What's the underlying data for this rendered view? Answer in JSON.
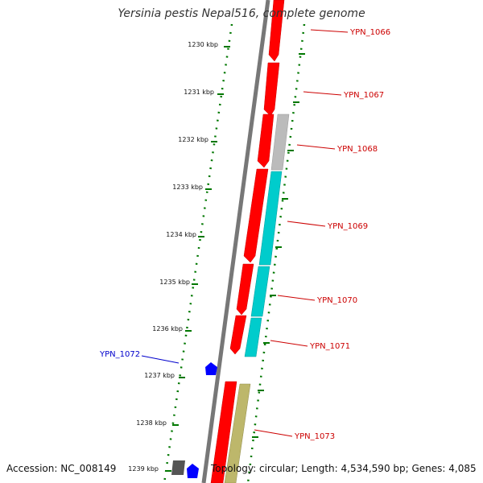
{
  "title": "Yersinia pestis Nepal516, complete genome",
  "footer": {
    "accession": "Accession: NC_008149",
    "topology": "Topology: circular; Length: 4,534,590 bp; Genes: 4,085"
  },
  "ticks": [
    {
      "label": "1230 kbp"
    },
    {
      "label": "1231 kbp"
    },
    {
      "label": "1232 kbp"
    },
    {
      "label": "1233 kbp"
    },
    {
      "label": "1234 kbp"
    },
    {
      "label": "1235 kbp"
    },
    {
      "label": "1236 kbp"
    },
    {
      "label": "1237 kbp"
    },
    {
      "label": "1238 kbp"
    },
    {
      "label": "1239 kbp"
    }
  ],
  "gene_labels": [
    {
      "label": "YPN_1066",
      "color": "#cc0000"
    },
    {
      "label": "YPN_1067",
      "color": "#cc0000"
    },
    {
      "label": "YPN_1068",
      "color": "#cc0000"
    },
    {
      "label": "YPN_1069",
      "color": "#cc0000"
    },
    {
      "label": "YPN_1070",
      "color": "#cc0000"
    },
    {
      "label": "YPN_1071",
      "color": "#cc0000"
    },
    {
      "label": "YPN_1072",
      "color": "#0000cc"
    },
    {
      "label": "YPN_1073",
      "color": "#cc0000"
    }
  ],
  "colors": {
    "cds_red": "#ff0000",
    "cyan": "#00cccc",
    "gray_feature": "#bbbbbb",
    "olive": "#bdb76b",
    "blue_feature": "#0000ff",
    "dark_feature": "#555555",
    "ruler_green": "#007700",
    "backbone": "#777777"
  }
}
